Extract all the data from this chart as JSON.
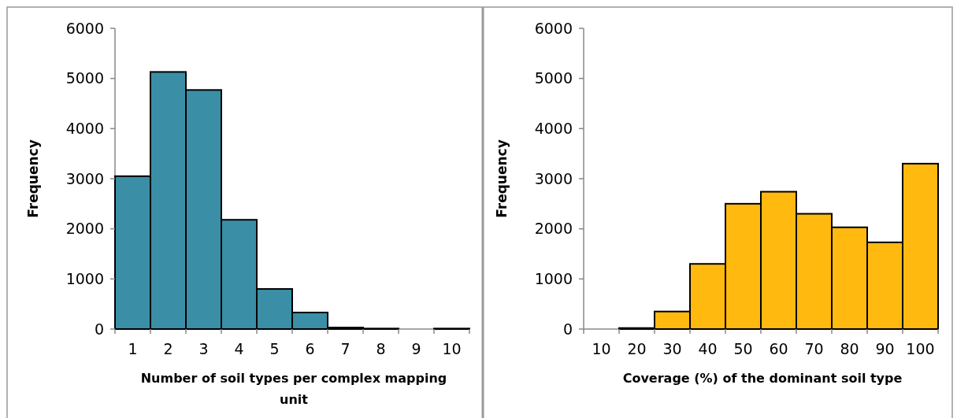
{
  "chart_data": [
    {
      "type": "bar",
      "xlabel": "Number of soil types per complex mapping unit",
      "ylabel": "Frequency",
      "categories": [
        "1",
        "2",
        "3",
        "4",
        "5",
        "6",
        "7",
        "8",
        "9",
        "10"
      ],
      "values": [
        3050,
        5130,
        4770,
        2180,
        800,
        330,
        30,
        10,
        null,
        10
      ],
      "color": "#3a8fa6",
      "ylim": [
        0,
        6000
      ],
      "yticks": [
        0,
        1000,
        2000,
        3000,
        4000,
        5000,
        6000
      ]
    },
    {
      "type": "bar",
      "xlabel": "Coverage (%) of the dominant soil type",
      "ylabel": "Frequency",
      "categories": [
        "10",
        "20",
        "30",
        "40",
        "50",
        "60",
        "70",
        "80",
        "90",
        "100"
      ],
      "values": [
        null,
        20,
        350,
        1300,
        2500,
        2740,
        2300,
        2030,
        1730,
        3300
      ],
      "color": "#ffb90f",
      "ylim": [
        0,
        6000
      ],
      "yticks": [
        0,
        1000,
        2000,
        3000,
        4000,
        5000,
        6000
      ]
    }
  ]
}
